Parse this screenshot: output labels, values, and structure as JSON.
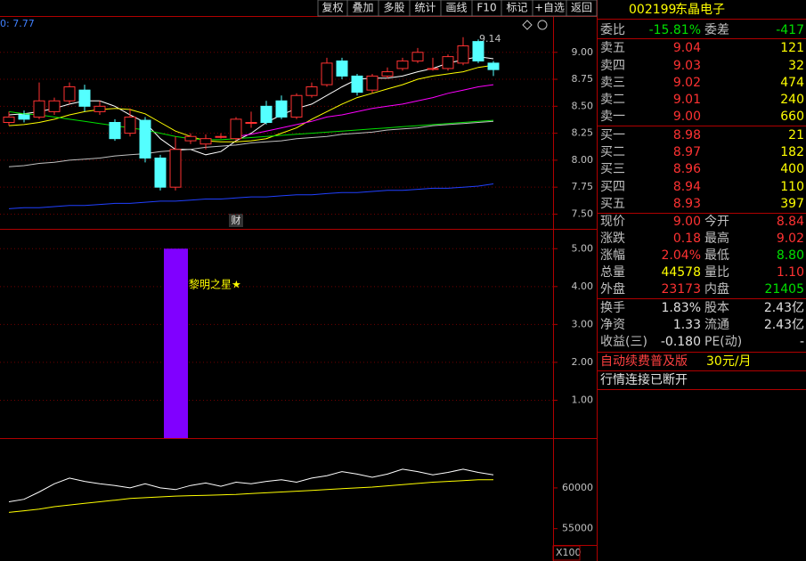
{
  "toolbar": {
    "buttons": [
      "复权",
      "叠加",
      "多股",
      "统计",
      "画线",
      "F10",
      "标记",
      "+自选",
      "返回"
    ]
  },
  "chart_data": [
    {
      "type": "candlestick",
      "legend_text": "0: 7.77",
      "marker_text": "财",
      "high_label": "9.14",
      "categories": [
        null,
        null,
        null,
        null,
        null,
        null,
        null,
        null,
        null,
        null,
        null,
        null,
        null,
        null,
        null,
        null,
        null,
        null,
        null,
        null,
        null,
        null,
        null,
        null,
        null,
        null,
        null,
        null,
        null,
        null,
        null,
        null,
        null
      ],
      "open": [
        8.35,
        8.42,
        8.4,
        8.45,
        8.55,
        8.65,
        8.45,
        8.35,
        8.25,
        8.37,
        8.02,
        7.75,
        8.18,
        8.15,
        8.22,
        8.2,
        8.35,
        8.5,
        8.55,
        8.4,
        8.6,
        8.7,
        8.92,
        8.78,
        8.65,
        8.78,
        8.85,
        8.92,
        8.85,
        8.85,
        8.9,
        9.1,
        8.9
      ],
      "high": [
        8.45,
        8.46,
        8.72,
        8.58,
        8.72,
        8.7,
        8.55,
        8.38,
        8.48,
        8.4,
        8.05,
        8.22,
        8.25,
        8.24,
        8.25,
        8.4,
        8.45,
        8.55,
        8.6,
        8.62,
        8.72,
        8.95,
        8.95,
        8.8,
        8.8,
        8.86,
        8.95,
        9.04,
        8.95,
        8.98,
        9.14,
        9.12,
        8.92
      ],
      "low": [
        8.32,
        8.35,
        8.38,
        8.42,
        8.52,
        8.45,
        8.42,
        8.18,
        8.22,
        7.98,
        7.72,
        7.72,
        8.15,
        8.1,
        8.2,
        8.18,
        8.3,
        8.33,
        8.38,
        8.38,
        8.58,
        8.68,
        8.75,
        8.6,
        8.62,
        8.76,
        8.83,
        8.9,
        8.83,
        8.83,
        8.88,
        8.9,
        8.78
      ],
      "close": [
        8.4,
        8.38,
        8.55,
        8.55,
        8.68,
        8.5,
        8.5,
        8.2,
        8.4,
        8.02,
        7.75,
        8.1,
        8.22,
        8.2,
        8.22,
        8.38,
        8.35,
        8.35,
        8.4,
        8.6,
        8.68,
        8.9,
        8.78,
        8.63,
        8.78,
        8.82,
        8.92,
        9.0,
        8.85,
        8.96,
        9.06,
        8.92,
        8.84
      ],
      "up_color": "#ff3232",
      "down_color": "#54ffff",
      "series": [
        {
          "color": "#ffffff",
          "values": [
            8.42,
            8.43,
            8.45,
            8.48,
            8.52,
            8.55,
            8.55,
            8.5,
            8.42,
            8.35,
            8.2,
            8.1,
            8.1,
            8.05,
            8.08,
            8.18,
            8.25,
            8.35,
            8.42,
            8.48,
            8.52,
            8.6,
            8.68,
            8.75,
            8.76,
            8.76,
            8.78,
            8.82,
            8.85,
            8.9,
            8.93,
            8.96,
            8.94
          ]
        },
        {
          "color": "#ffff00",
          "values": [
            8.32,
            8.33,
            8.35,
            8.38,
            8.42,
            8.45,
            8.47,
            8.48,
            8.47,
            8.43,
            8.35,
            8.27,
            8.22,
            8.18,
            8.17,
            8.17,
            8.18,
            8.2,
            8.25,
            8.3,
            8.38,
            8.45,
            8.52,
            8.58,
            8.62,
            8.66,
            8.7,
            8.75,
            8.78,
            8.8,
            8.82,
            8.86,
            8.88
          ]
        },
        {
          "color": "#ff00ff",
          "values": [
            null,
            null,
            null,
            null,
            null,
            null,
            null,
            null,
            null,
            null,
            null,
            null,
            null,
            null,
            null,
            8.22,
            8.24,
            8.27,
            8.3,
            8.33,
            8.36,
            8.4,
            8.42,
            8.45,
            8.48,
            8.5,
            8.52,
            8.55,
            8.58,
            8.62,
            8.65,
            8.68,
            8.7
          ]
        },
        {
          "color": "#00e000",
          "values": [
            8.45,
            8.43,
            8.42,
            8.4,
            8.38,
            8.36,
            8.34,
            8.32,
            8.3,
            8.28,
            8.25,
            8.22,
            8.2,
            8.19,
            8.19,
            8.2,
            8.21,
            8.22,
            8.23,
            8.24,
            8.25,
            8.26,
            8.27,
            8.28,
            8.29,
            8.3,
            8.31,
            8.32,
            8.33,
            8.34,
            8.35,
            8.36,
            8.37
          ]
        },
        {
          "color": "#c0c0c0",
          "values": [
            7.94,
            7.95,
            7.97,
            7.98,
            8.0,
            8.01,
            8.02,
            8.04,
            8.05,
            8.06,
            8.08,
            8.09,
            8.1,
            8.12,
            8.13,
            8.14,
            8.16,
            8.17,
            8.18,
            8.2,
            8.21,
            8.22,
            8.24,
            8.25,
            8.26,
            8.28,
            8.29,
            8.3,
            8.32,
            8.33,
            8.34,
            8.35,
            8.36
          ]
        },
        {
          "color": "#2040ff",
          "values": [
            7.55,
            7.56,
            7.56,
            7.57,
            7.58,
            7.58,
            7.59,
            7.6,
            7.6,
            7.61,
            7.62,
            7.62,
            7.63,
            7.64,
            7.64,
            7.65,
            7.66,
            7.66,
            7.67,
            7.68,
            7.68,
            7.69,
            7.7,
            7.7,
            7.71,
            7.72,
            7.72,
            7.73,
            7.74,
            7.74,
            7.75,
            7.76,
            7.78
          ]
        }
      ],
      "ylim": [
        7.38,
        9.32
      ],
      "yticks": [
        {
          "value": 9,
          "label": "9.00"
        },
        8.75,
        {
          "value": 8.5,
          "label": "8.50"
        },
        8.25,
        {
          "value": 8,
          "label": "8.00"
        },
        7.75,
        {
          "value": 7.5,
          "label": "7.50"
        }
      ],
      "grid": true
    },
    {
      "type": "bar",
      "annotation": "黎明之星★",
      "color": "#8000ff",
      "values": [
        null,
        null,
        null,
        null,
        null,
        null,
        null,
        null,
        null,
        null,
        null,
        5,
        null,
        null,
        null,
        null,
        null,
        null,
        null,
        null,
        null,
        null,
        null,
        null,
        null,
        null,
        null,
        null,
        null,
        null,
        null,
        null,
        null
      ],
      "ylim": [
        0,
        5.5
      ],
      "yticks": [
        {
          "value": 5,
          "label": "5.00"
        },
        {
          "value": 4,
          "label": "4.00"
        },
        {
          "value": 3,
          "label": "3.00"
        },
        {
          "value": 2,
          "label": "2.00"
        },
        {
          "value": 1,
          "label": "1.00"
        }
      ],
      "grid": true
    },
    {
      "type": "line",
      "unit_label": "X100",
      "series": [
        {
          "color": "#ffffff",
          "values": [
            58300,
            58600,
            59500,
            60500,
            61200,
            60800,
            60500,
            60300,
            60000,
            60500,
            60000,
            59800,
            60300,
            60600,
            60200,
            60700,
            60500,
            60800,
            61000,
            60700,
            61200,
            61500,
            62000,
            61700,
            61300,
            61700,
            62300,
            62000,
            61600,
            61900,
            62300,
            61900,
            61600
          ]
        },
        {
          "color": "#ffff00",
          "values": [
            57000,
            57200,
            57400,
            57700,
            57900,
            58100,
            58300,
            58500,
            58700,
            58800,
            58900,
            59000,
            59050,
            59100,
            59150,
            59200,
            59300,
            59400,
            59500,
            59600,
            59700,
            59800,
            59900,
            60000,
            60100,
            60250,
            60400,
            60550,
            60700,
            60800,
            60900,
            61000,
            61000
          ]
        }
      ],
      "ylim": [
        53000,
        66000
      ],
      "yticks": [
        60000,
        55000
      ],
      "grid": false
    }
  ],
  "quote": {
    "code": "002199",
    "name": "东晶电子",
    "rows": [
      {
        "cells": [
          "委比",
          "-15.81%",
          "委差",
          "-417"
        ],
        "colors": [
          "#c0c0c0",
          "#00e000",
          "#c0c0c0",
          "#00e000"
        ]
      },
      {
        "cells": [
          "卖五",
          "9.04",
          "",
          "121"
        ],
        "colors": [
          "#c0c0c0",
          "#ff3232",
          "#c0c0c0",
          "#ffff00"
        ]
      },
      {
        "cells": [
          "卖四",
          "9.03",
          "",
          "32"
        ],
        "colors": [
          "#c0c0c0",
          "#ff3232",
          "#c0c0c0",
          "#ffff00"
        ]
      },
      {
        "cells": [
          "卖三",
          "9.02",
          "",
          "474"
        ],
        "colors": [
          "#c0c0c0",
          "#ff3232",
          "#c0c0c0",
          "#ffff00"
        ]
      },
      {
        "cells": [
          "卖二",
          "9.01",
          "",
          "240"
        ],
        "colors": [
          "#c0c0c0",
          "#ff3232",
          "#c0c0c0",
          "#ffff00"
        ]
      },
      {
        "cells": [
          "卖一",
          "9.00",
          "",
          "660"
        ],
        "colors": [
          "#c0c0c0",
          "#ff3232",
          "#c0c0c0",
          "#ffff00"
        ]
      },
      {
        "cells": [
          "买一",
          "8.98",
          "",
          "21"
        ],
        "colors": [
          "#c0c0c0",
          "#ff3232",
          "#c0c0c0",
          "#ffff00"
        ]
      },
      {
        "cells": [
          "买二",
          "8.97",
          "",
          "182"
        ],
        "colors": [
          "#c0c0c0",
          "#ff3232",
          "#c0c0c0",
          "#ffff00"
        ]
      },
      {
        "cells": [
          "买三",
          "8.96",
          "",
          "400"
        ],
        "colors": [
          "#c0c0c0",
          "#ff3232",
          "#c0c0c0",
          "#ffff00"
        ]
      },
      {
        "cells": [
          "买四",
          "8.94",
          "",
          "110"
        ],
        "colors": [
          "#c0c0c0",
          "#ff3232",
          "#c0c0c0",
          "#ffff00"
        ]
      },
      {
        "cells": [
          "买五",
          "8.93",
          "",
          "397"
        ],
        "colors": [
          "#c0c0c0",
          "#ff3232",
          "#c0c0c0",
          "#ffff00"
        ]
      },
      {
        "cells": [
          "现价",
          "9.00",
          "今开",
          "8.84"
        ],
        "colors": [
          "#c0c0c0",
          "#ff3232",
          "#c0c0c0",
          "#ff3232"
        ]
      },
      {
        "cells": [
          "涨跌",
          "0.18",
          "最高",
          "9.02"
        ],
        "colors": [
          "#c0c0c0",
          "#ff3232",
          "#c0c0c0",
          "#ff3232"
        ]
      },
      {
        "cells": [
          "涨幅",
          "2.04%",
          "最低",
          "8.80"
        ],
        "colors": [
          "#c0c0c0",
          "#ff3232",
          "#c0c0c0",
          "#00e000"
        ]
      },
      {
        "cells": [
          "总量",
          "44578",
          "量比",
          "1.10"
        ],
        "colors": [
          "#c0c0c0",
          "#ffff00",
          "#c0c0c0",
          "#ff3232"
        ]
      },
      {
        "cells": [
          "外盘",
          "23173",
          "内盘",
          "21405"
        ],
        "colors": [
          "#c0c0c0",
          "#ff3232",
          "#c0c0c0",
          "#00e000"
        ]
      },
      {
        "cells": [
          "换手",
          "1.83%",
          "股本",
          "2.43亿"
        ],
        "colors": [
          "#c0c0c0",
          "#e0e0e0",
          "#c0c0c0",
          "#e0e0e0"
        ]
      },
      {
        "cells": [
          "净资",
          "1.33",
          "流通",
          "2.43亿"
        ],
        "colors": [
          "#c0c0c0",
          "#e0e0e0",
          "#c0c0c0",
          "#e0e0e0"
        ]
      },
      {
        "cells": [
          "收益(三)",
          "-0.180",
          "PE(动)",
          "-"
        ],
        "colors": [
          "#c0c0c0",
          "#e0e0e0",
          "#c0c0c0",
          "#e0e0e0"
        ]
      },
      {
        "cells": [
          "自动续费普及版",
          "",
          "30元/月",
          ""
        ],
        "colors": [
          "#ff4040",
          "#c0c0c0",
          "#ffff00",
          "#c0c0c0"
        ]
      },
      {
        "cells": [
          "行情连接已断开",
          "",
          "",
          ""
        ],
        "colors": [
          "#e0e0e0",
          "#c0c0c0",
          "#c0c0c0",
          "#c0c0c0"
        ]
      }
    ]
  }
}
